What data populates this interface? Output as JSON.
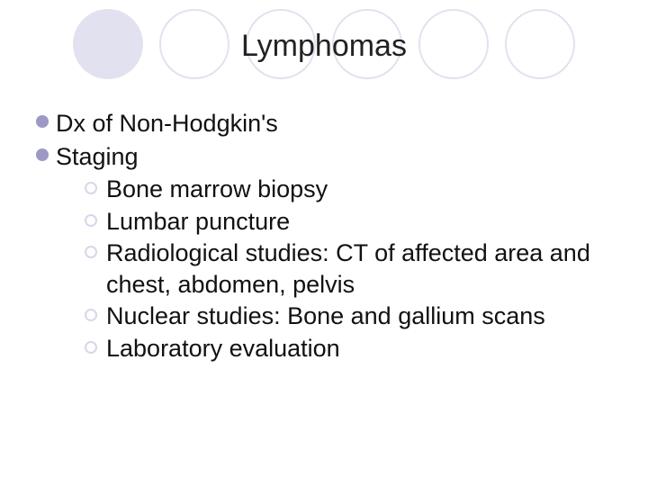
{
  "title": "Lymphomas",
  "circles": [
    {
      "type": "filled"
    },
    {
      "type": "outline"
    },
    {
      "type": "outline"
    },
    {
      "type": "outline"
    },
    {
      "type": "outline"
    },
    {
      "type": "outline"
    }
  ],
  "bullet_color": "#9c99c7",
  "sub_bullet_border": "#d8d6ea",
  "text_color": "#111111",
  "title_color": "#222222",
  "background_color": "#ffffff",
  "circle_fill": "#e2e1ef",
  "title_fontsize": 34,
  "body_fontsize": 27,
  "bullets": [
    {
      "label": "Dx of Non-Hodgkin's"
    },
    {
      "label": "Staging"
    }
  ],
  "sub_items": [
    {
      "label": "Bone marrow biopsy"
    },
    {
      "label": "Lumbar puncture"
    },
    {
      "label": "Radiological studies: CT of affected area and chest, abdomen, pelvis"
    },
    {
      "label": "Nuclear studies: Bone and gallium scans"
    },
    {
      "label": "Laboratory evaluation"
    }
  ]
}
